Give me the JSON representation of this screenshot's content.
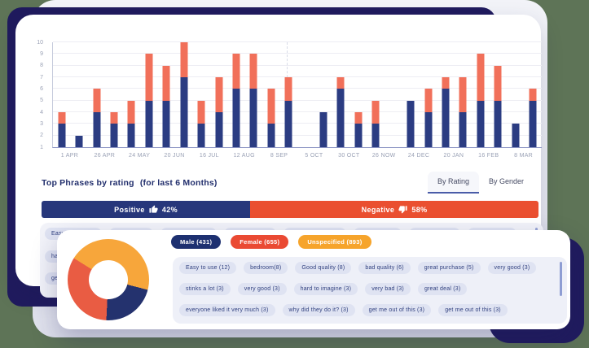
{
  "page": {
    "background_color": "#5e7457",
    "decor_navy_color": "#201b5e",
    "decor_grey_color": "#e7e9f1"
  },
  "chart_data": [
    {
      "type": "bar",
      "stacked": true,
      "y_axis": {
        "min": 1,
        "max": 10,
        "ticks": [
          1,
          2,
          3,
          4,
          5,
          6,
          7,
          8,
          9,
          10
        ]
      },
      "x_tick_labels": [
        "1 APR",
        "26 APR",
        "24 MAY",
        "20 JUN",
        "16 JUL",
        "12 AUG",
        "8 SEP",
        "5 OCT",
        "30 OCT",
        "26 NOW",
        "24 DEC",
        "20 JAN",
        "16 FEB",
        "8 MAR"
      ],
      "bars_per_x_label": 2,
      "series": [
        {
          "name": "positive",
          "color": "#2b3c82",
          "top_values": [
            3,
            2,
            4,
            3,
            3,
            5,
            5,
            7,
            3,
            4,
            6,
            6,
            3,
            5,
            null,
            4,
            6,
            3,
            3,
            null,
            5,
            4,
            6,
            4,
            5,
            5,
            3,
            5
          ]
        },
        {
          "name": "negative",
          "color": "#f1705a",
          "top_values": [
            4,
            2,
            6,
            4,
            5,
            9,
            8,
            10,
            5,
            7,
            9,
            9,
            6,
            7,
            null,
            4,
            7,
            4,
            5,
            null,
            5,
            6,
            7,
            7,
            9,
            8,
            3,
            6
          ]
        }
      ]
    },
    {
      "type": "pie",
      "donut": true,
      "start_angle_deg": -58,
      "segments": [
        {
          "label": "Unspecified",
          "value": 893,
          "color": "#f7a63b"
        },
        {
          "label": "Male",
          "value": 431,
          "color": "#24326e"
        },
        {
          "label": "Female",
          "value": 655,
          "color": "#e95c43"
        }
      ]
    }
  ],
  "section": {
    "title": "Top Phrases by rating",
    "subtitle": "(for last 6 Months)",
    "tabs": [
      "By Rating",
      "By Gender"
    ],
    "active_tab": "By Rating"
  },
  "rating_bar": {
    "positive_label": "Positive",
    "positive_value": "42%",
    "positive_pct": 42,
    "positive_color": "#27377b",
    "negative_label": "Negative",
    "negative_value": "58%",
    "negative_pct": 58,
    "negative_color": "#ea4f30"
  },
  "phrases": {
    "row1": [
      "Easy to use (12)",
      "bedroom(8)",
      "Good quality (8)",
      "bad quality (6)",
      "great purchase (5)",
      "very good (3)",
      "stinks a lot (3)",
      "very good (3)"
    ],
    "row2_partial": [
      "hard to"
    ],
    "row3_partial": [
      "get me"
    ]
  },
  "gender": {
    "badges": [
      {
        "label": "Male (431)",
        "color": "#1d3070"
      },
      {
        "label": "Female (655)",
        "color": "#ea4a33"
      },
      {
        "label": "Unspecified (893)",
        "color": "#f6a42b"
      }
    ],
    "rows": [
      [
        "Easy to use (12)",
        "bedroom(8)",
        "Good quality (8)",
        "bad quality (6)",
        "great purchase (5)",
        "very good (3)"
      ],
      [
        "stinks a lot (3)",
        "very good (3)",
        "hard to imagine (3)",
        "very bad (3)",
        "great deal (3)"
      ],
      [
        "everyone liked it very much (3)",
        "why did they do it? (3)",
        "get me out of this (3)",
        "get me out of this (3)"
      ]
    ]
  }
}
